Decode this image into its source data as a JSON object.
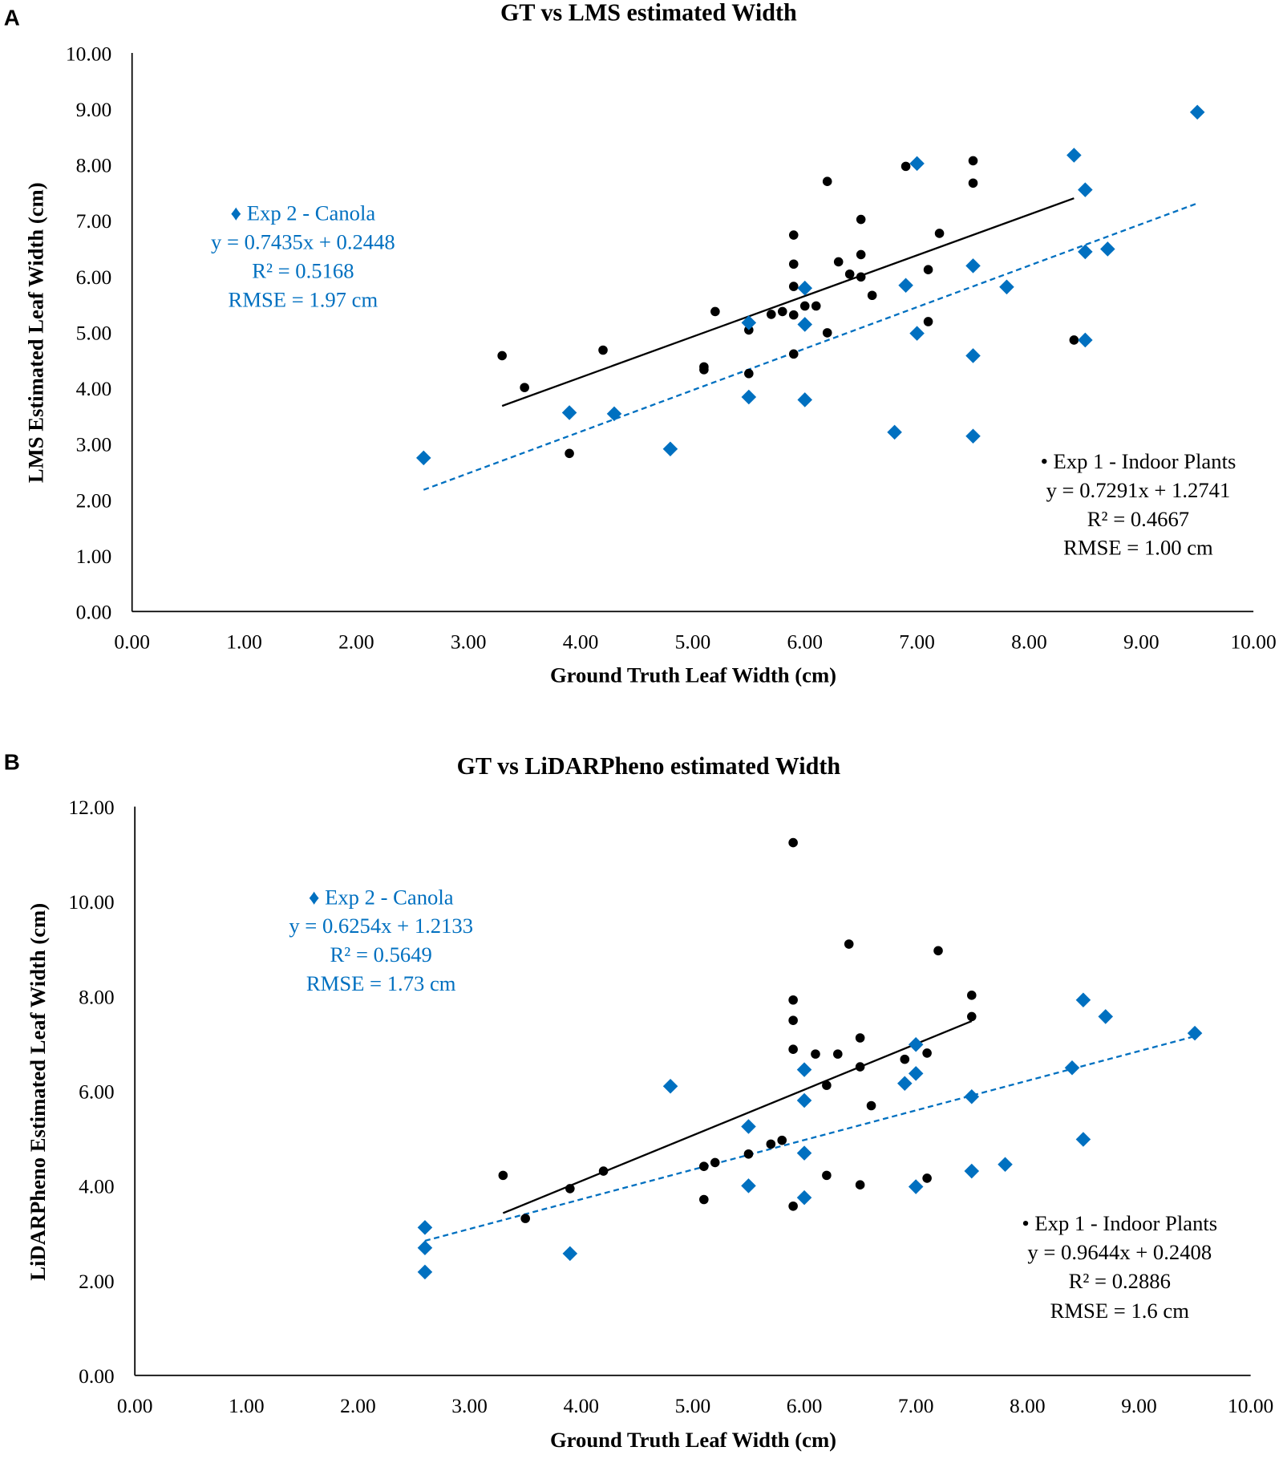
{
  "chart_data": [
    {
      "panel": "A",
      "type": "scatter",
      "title": "GT vs LMS estimated Width",
      "xlabel": "Ground Truth Leaf Width (cm)",
      "ylabel": "LMS Estimated Leaf Width (cm)",
      "xlim": [
        0,
        10
      ],
      "ylim": [
        0,
        10
      ],
      "xticks": [
        "0.00",
        "1.00",
        "2.00",
        "3.00",
        "4.00",
        "5.00",
        "6.00",
        "7.00",
        "8.00",
        "9.00",
        "10.00"
      ],
      "yticks": [
        "0.00",
        "1.00",
        "2.00",
        "3.00",
        "4.00",
        "5.00",
        "6.00",
        "7.00",
        "8.00",
        "9.00",
        "10.00"
      ],
      "grid": false,
      "series": [
        {
          "name": "Exp 1 - Indoor Plants",
          "marker": "circle",
          "color": "#000000",
          "legend": [
            "• Exp 1 - Indoor Plants",
            "y = 0.7291x + 1.2741",
            "R² = 0.4667",
            "RMSE = 1.00 cm"
          ],
          "trend": {
            "slope": 0.7291,
            "intercept": 1.2741,
            "x_range": [
              3.3,
              8.4
            ],
            "style": "solid"
          },
          "points": [
            [
              3.3,
              4.58
            ],
            [
              3.5,
              4.01
            ],
            [
              3.9,
              2.83
            ],
            [
              4.2,
              4.68
            ],
            [
              5.1,
              4.38
            ],
            [
              5.1,
              4.33
            ],
            [
              5.2,
              5.37
            ],
            [
              5.5,
              5.04
            ],
            [
              5.5,
              4.26
            ],
            [
              5.7,
              5.32
            ],
            [
              5.8,
              5.37
            ],
            [
              5.9,
              6.74
            ],
            [
              5.9,
              6.22
            ],
            [
              5.9,
              5.82
            ],
            [
              5.9,
              5.31
            ],
            [
              5.9,
              4.61
            ],
            [
              6.0,
              5.47
            ],
            [
              6.1,
              5.47
            ],
            [
              6.2,
              7.7
            ],
            [
              6.2,
              4.99
            ],
            [
              6.3,
              6.26
            ],
            [
              6.4,
              6.04
            ],
            [
              6.5,
              7.02
            ],
            [
              6.5,
              6.39
            ],
            [
              6.5,
              5.99
            ],
            [
              6.6,
              5.66
            ],
            [
              6.9,
              7.97
            ],
            [
              7.1,
              6.12
            ],
            [
              7.1,
              5.19
            ],
            [
              7.2,
              6.77
            ],
            [
              7.5,
              8.07
            ],
            [
              7.5,
              7.67
            ],
            [
              8.4,
              4.86
            ]
          ]
        },
        {
          "name": "Exp 2 - Canola",
          "marker": "diamond",
          "color": "#0070C0",
          "legend": [
            "♦ Exp 2 - Canola",
            "y = 0.7435x + 0.2448",
            "R² = 0.5168",
            "RMSE = 1.97 cm"
          ],
          "trend": {
            "slope": 0.7435,
            "intercept": 0.2448,
            "x_range": [
              2.6,
              9.5
            ],
            "style": "dashed"
          },
          "points": [
            [
              2.6,
              2.75
            ],
            [
              3.9,
              3.56
            ],
            [
              4.3,
              3.54
            ],
            [
              4.8,
              2.91
            ],
            [
              5.5,
              5.17
            ],
            [
              5.5,
              3.84
            ],
            [
              6.0,
              5.79
            ],
            [
              6.0,
              5.14
            ],
            [
              6.0,
              3.79
            ],
            [
              6.8,
              3.21
            ],
            [
              6.9,
              5.84
            ],
            [
              7.0,
              8.02
            ],
            [
              7.0,
              4.98
            ],
            [
              7.5,
              6.19
            ],
            [
              7.5,
              4.58
            ],
            [
              7.5,
              3.14
            ],
            [
              7.8,
              5.81
            ],
            [
              8.4,
              8.17
            ],
            [
              8.5,
              7.55
            ],
            [
              8.5,
              6.44
            ],
            [
              8.5,
              4.86
            ],
            [
              8.7,
              6.49
            ],
            [
              9.5,
              8.94
            ]
          ]
        }
      ]
    },
    {
      "panel": "B",
      "type": "scatter",
      "title": "GT vs LiDARPheno estimated Width",
      "xlabel": "Ground Truth Leaf Width (cm)",
      "ylabel": "LiDARPheno Estimated Leaf Width (cm)",
      "xlim": [
        0,
        10
      ],
      "ylim": [
        0,
        12
      ],
      "xticks": [
        "0.00",
        "1.00",
        "2.00",
        "3.00",
        "4.00",
        "5.00",
        "6.00",
        "7.00",
        "8.00",
        "9.00",
        "10.00"
      ],
      "yticks": [
        "0.00",
        "2.00",
        "4.00",
        "6.00",
        "8.00",
        "10.00",
        "12.00"
      ],
      "grid": false,
      "series": [
        {
          "name": "Exp 1 - Indoor Plants",
          "marker": "circle",
          "color": "#000000",
          "legend": [
            "• Exp 1 - Indoor Plants",
            "y = 0.9644x + 0.2408",
            "R² = 0.2886",
            "RMSE = 1.6 cm"
          ],
          "trend": {
            "slope": 0.9644,
            "intercept": 0.2408,
            "x_range": [
              3.3,
              7.5
            ],
            "style": "solid"
          },
          "points": [
            [
              3.3,
              4.22
            ],
            [
              3.5,
              3.31
            ],
            [
              3.9,
              3.94
            ],
            [
              4.2,
              4.31
            ],
            [
              5.1,
              4.41
            ],
            [
              5.1,
              3.71
            ],
            [
              5.2,
              4.49
            ],
            [
              5.5,
              4.67
            ],
            [
              5.7,
              4.88
            ],
            [
              5.8,
              4.96
            ],
            [
              5.9,
              11.24
            ],
            [
              5.9,
              7.92
            ],
            [
              5.9,
              7.49
            ],
            [
              5.9,
              6.88
            ],
            [
              5.9,
              3.57
            ],
            [
              6.1,
              6.78
            ],
            [
              6.2,
              6.12
            ],
            [
              6.2,
              4.22
            ],
            [
              6.3,
              6.78
            ],
            [
              6.4,
              9.1
            ],
            [
              6.5,
              7.12
            ],
            [
              6.5,
              6.51
            ],
            [
              6.5,
              4.02
            ],
            [
              6.6,
              5.69
            ],
            [
              6.9,
              6.67
            ],
            [
              7.1,
              6.8
            ],
            [
              7.1,
              4.16
            ],
            [
              7.2,
              8.96
            ],
            [
              7.5,
              8.02
            ],
            [
              7.5,
              7.57
            ]
          ]
        },
        {
          "name": "Exp 2 - Canola",
          "marker": "diamond",
          "color": "#0070C0",
          "legend": [
            "♦ Exp 2 - Canola",
            "y = 0.6254x + 1.2133",
            "R² = 0.5649",
            "RMSE = 1.73 cm"
          ],
          "trend": {
            "slope": 0.6254,
            "intercept": 1.2133,
            "x_range": [
              2.6,
              9.5
            ],
            "style": "dashed"
          },
          "points": [
            [
              2.6,
              3.12
            ],
            [
              2.6,
              2.69
            ],
            [
              2.6,
              2.18
            ],
            [
              3.9,
              2.57
            ],
            [
              4.8,
              6.1
            ],
            [
              5.5,
              5.25
            ],
            [
              5.5,
              4.0
            ],
            [
              6.0,
              6.45
            ],
            [
              6.0,
              5.8
            ],
            [
              6.0,
              4.69
            ],
            [
              6.0,
              3.75
            ],
            [
              6.9,
              6.16
            ],
            [
              7.0,
              6.98
            ],
            [
              7.0,
              6.37
            ],
            [
              7.0,
              3.98
            ],
            [
              7.5,
              5.88
            ],
            [
              7.5,
              4.31
            ],
            [
              7.8,
              4.45
            ],
            [
              8.4,
              6.49
            ],
            [
              8.5,
              7.92
            ],
            [
              8.5,
              4.98
            ],
            [
              8.7,
              7.57
            ],
            [
              9.5,
              7.22
            ]
          ]
        }
      ]
    }
  ]
}
